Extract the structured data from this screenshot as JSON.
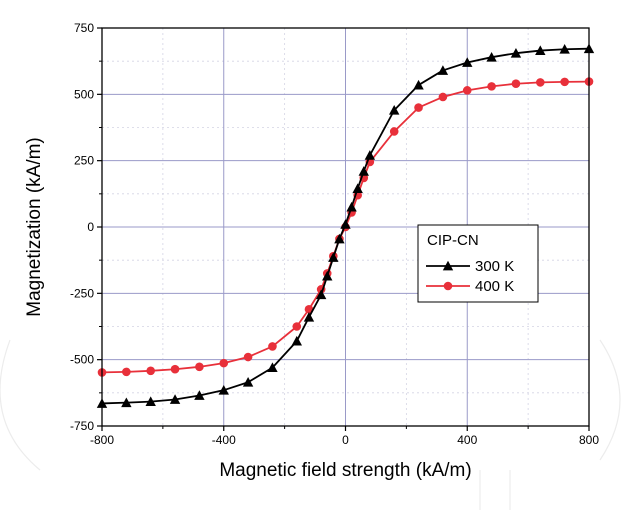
{
  "chart_data": {
    "type": "line",
    "xlabel": "Magnetic field strength (kA/m)",
    "ylabel": "Magnetization (kA/m)",
    "xlim": [
      -800,
      800
    ],
    "ylim": [
      -750,
      750
    ],
    "xticks": [
      -800,
      -400,
      0,
      400,
      800
    ],
    "yticks": [
      750,
      500,
      250,
      0,
      -250,
      -500,
      -750
    ],
    "grid": true,
    "legend": {
      "placement": "center-right",
      "title": "CIP-CN",
      "entries": [
        "300 K",
        "400 K"
      ]
    },
    "series": [
      {
        "name": "300 K",
        "color": "#000000",
        "marker": "triangle",
        "x": [
          -800,
          -720,
          -640,
          -560,
          -480,
          -400,
          -320,
          -240,
          -160,
          -120,
          -80,
          -60,
          -40,
          -20,
          0,
          20,
          40,
          60,
          80,
          160,
          240,
          320,
          400,
          480,
          560,
          640,
          720,
          800
        ],
        "y": [
          -665,
          -662,
          -658,
          -650,
          -635,
          -615,
          -585,
          -530,
          -430,
          -340,
          -255,
          -185,
          -115,
          -45,
          10,
          75,
          145,
          210,
          270,
          440,
          535,
          590,
          620,
          640,
          655,
          665,
          670,
          672
        ]
      },
      {
        "name": "400 K",
        "color": "#e8303a",
        "marker": "circle",
        "x": [
          -800,
          -720,
          -640,
          -560,
          -480,
          -400,
          -320,
          -240,
          -160,
          -120,
          -80,
          -60,
          -40,
          -20,
          0,
          20,
          40,
          60,
          80,
          160,
          240,
          320,
          400,
          480,
          560,
          640,
          720,
          800
        ],
        "y": [
          -548,
          -546,
          -542,
          -536,
          -527,
          -513,
          -490,
          -450,
          -375,
          -310,
          -235,
          -175,
          -110,
          -45,
          0,
          55,
          120,
          185,
          245,
          360,
          450,
          490,
          515,
          530,
          540,
          545,
          547,
          548
        ]
      }
    ]
  }
}
